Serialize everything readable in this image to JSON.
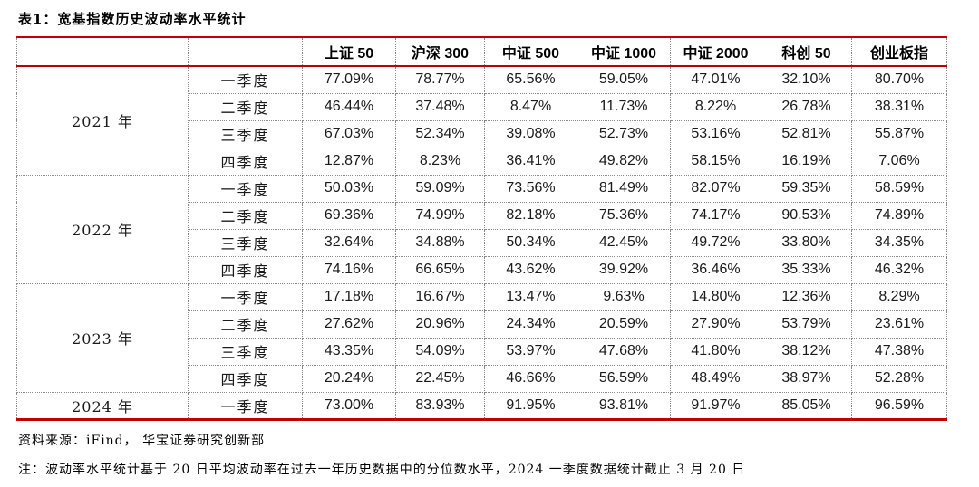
{
  "title": "表1：宽基指数历史波动率水平统计",
  "colors": {
    "accent_red": "#C00000",
    "grid_dotted_gray": "#8a8a8a"
  },
  "table": {
    "columns": [
      "上证 50",
      "沪深 300",
      "中证 500",
      "中证 1000",
      "中证 2000",
      "科创 50",
      "创业板指"
    ],
    "groups": [
      {
        "year": "2021 年",
        "rows": [
          {
            "quarter": "一季度",
            "values": [
              "77.09%",
              "78.77%",
              "65.56%",
              "59.05%",
              "47.01%",
              "32.10%",
              "80.70%"
            ]
          },
          {
            "quarter": "二季度",
            "values": [
              "46.44%",
              "37.48%",
              "8.47%",
              "11.73%",
              "8.22%",
              "26.78%",
              "38.31%"
            ]
          },
          {
            "quarter": "三季度",
            "values": [
              "67.03%",
              "52.34%",
              "39.08%",
              "52.73%",
              "53.16%",
              "52.81%",
              "55.87%"
            ]
          },
          {
            "quarter": "四季度",
            "values": [
              "12.87%",
              "8.23%",
              "36.41%",
              "49.82%",
              "58.15%",
              "16.19%",
              "7.06%"
            ]
          }
        ]
      },
      {
        "year": "2022 年",
        "rows": [
          {
            "quarter": "一季度",
            "values": [
              "50.03%",
              "59.09%",
              "73.56%",
              "81.49%",
              "82.07%",
              "59.35%",
              "58.59%"
            ]
          },
          {
            "quarter": "二季度",
            "values": [
              "69.36%",
              "74.99%",
              "82.18%",
              "75.36%",
              "74.17%",
              "90.53%",
              "74.89%"
            ]
          },
          {
            "quarter": "三季度",
            "values": [
              "32.64%",
              "34.88%",
              "50.34%",
              "42.45%",
              "49.72%",
              "33.80%",
              "34.35%"
            ]
          },
          {
            "quarter": "四季度",
            "values": [
              "74.16%",
              "66.65%",
              "43.62%",
              "39.92%",
              "36.46%",
              "35.33%",
              "46.32%"
            ]
          }
        ]
      },
      {
        "year": "2023 年",
        "rows": [
          {
            "quarter": "一季度",
            "values": [
              "17.18%",
              "16.67%",
              "13.47%",
              "9.63%",
              "14.80%",
              "12.36%",
              "8.29%"
            ]
          },
          {
            "quarter": "二季度",
            "values": [
              "27.62%",
              "20.96%",
              "24.34%",
              "20.59%",
              "27.90%",
              "53.79%",
              "23.61%"
            ]
          },
          {
            "quarter": "三季度",
            "values": [
              "43.35%",
              "54.09%",
              "53.97%",
              "47.68%",
              "41.80%",
              "38.12%",
              "47.38%"
            ]
          },
          {
            "quarter": "四季度",
            "values": [
              "20.24%",
              "22.45%",
              "46.66%",
              "56.59%",
              "48.49%",
              "38.97%",
              "52.28%"
            ]
          }
        ]
      },
      {
        "year": "2024 年",
        "rows": [
          {
            "quarter": "一季度",
            "values": [
              "73.00%",
              "83.93%",
              "91.95%",
              "93.81%",
              "91.97%",
              "85.05%",
              "96.59%"
            ]
          }
        ]
      }
    ]
  },
  "footer": {
    "source": "资料来源：iFind， 华宝证券研究创新部",
    "note": "注：波动率水平统计基于 20 日平均波动率在过去一年历史数据中的分位数水平，2024 一季度数据统计截止 3 月 20 日"
  }
}
